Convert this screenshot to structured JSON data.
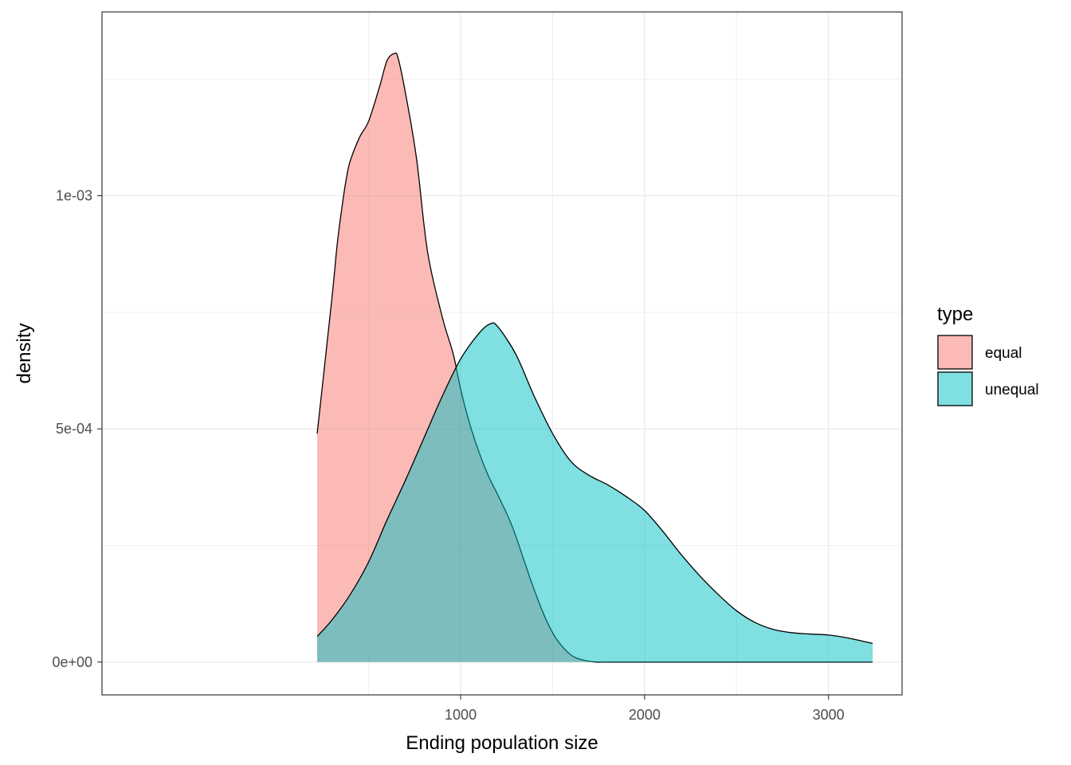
{
  "chart_data": {
    "type": "area",
    "subtype": "density",
    "title": "",
    "xlabel": "Ending population size",
    "ylabel": "density",
    "xlim": [
      -950,
      3400
    ],
    "ylim": [
      -7.04e-05,
      0.001394
    ],
    "x_ticks": [
      1000,
      2000,
      3000
    ],
    "x_tick_labels": [
      "1000",
      "2000",
      "3000"
    ],
    "y_ticks": [
      0,
      0.0005,
      0.001
    ],
    "y_tick_labels": [
      "0e+00",
      "5e-04",
      "1e-03"
    ],
    "grid": true,
    "legend": {
      "title": "type",
      "position": "right",
      "entries": [
        "equal",
        "unequal"
      ]
    },
    "series": [
      {
        "name": "equal",
        "color": "#F8766D",
        "x": [
          220,
          300,
          330,
          360,
          380,
          400,
          450,
          500,
          560,
          600,
          640,
          660,
          700,
          760,
          820,
          900,
          960,
          1000,
          1050,
          1100,
          1150,
          1200,
          1260,
          1300,
          1360,
          1400,
          1460,
          1520,
          1600,
          1680,
          1740,
          1800,
          2000,
          2500,
          3000,
          3240
        ],
        "y": [
          0.00049,
          0.00078,
          0.0009,
          0.00099,
          0.00104,
          0.001075,
          0.001125,
          0.00116,
          0.001235,
          0.00129,
          0.001305,
          0.001295,
          0.00122,
          0.00108,
          0.00088,
          0.00074,
          0.00066,
          0.000585,
          0.00051,
          0.00045,
          0.0004,
          0.00036,
          0.00031,
          0.00027,
          0.0002,
          0.000155,
          9.5e-05,
          5e-05,
          1.5e-05,
          3e-06,
          0,
          0,
          0,
          0,
          0,
          0
        ]
      },
      {
        "name": "unequal",
        "color": "#00BFC4",
        "x": [
          220,
          300,
          400,
          500,
          600,
          700,
          800,
          900,
          1000,
          1100,
          1160,
          1200,
          1300,
          1400,
          1500,
          1600,
          1700,
          1800,
          1900,
          2000,
          2100,
          2200,
          2300,
          2400,
          2500,
          2600,
          2700,
          2800,
          2900,
          3000,
          3100,
          3240
        ],
        "y": [
          5.5e-05,
          9e-05,
          0.000145,
          0.000215,
          0.000305,
          0.00039,
          0.00048,
          0.00057,
          0.00065,
          0.000705,
          0.000725,
          0.00072,
          0.00066,
          0.00057,
          0.00049,
          0.00043,
          0.0004,
          0.00038,
          0.000355,
          0.000325,
          0.00028,
          0.00023,
          0.000185,
          0.000145,
          0.00011,
          8.5e-05,
          7e-05,
          6.3e-05,
          6e-05,
          5.8e-05,
          5.2e-05,
          4e-05
        ]
      }
    ]
  }
}
